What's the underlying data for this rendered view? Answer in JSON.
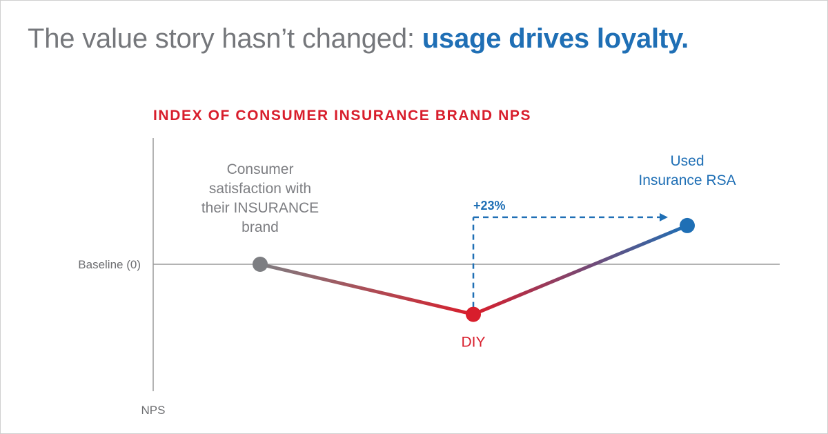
{
  "headline": {
    "lead": "The value story hasn’t changed: ",
    "accent": "usage drives loyalty."
  },
  "colors": {
    "headline_gray": "#75777b",
    "accent_blue": "#1f6fb5",
    "title_red": "#d81e2c",
    "point_gray": "#7d7e82",
    "point_red": "#d81e2c",
    "point_blue": "#1f6fb5",
    "axis": "#9a9a9a"
  },
  "chart_data": {
    "type": "line",
    "title": "INDEX OF CONSUMER INSURANCE BRAND NPS",
    "ylabel": "NPS",
    "baseline_label": "Baseline (0)",
    "ylim": [
      -60,
      60
    ],
    "points": [
      {
        "label_lines": [
          "Consumer",
          "satisfaction with",
          "their INSURANCE",
          "brand"
        ],
        "y": 0,
        "color": "#7d7e82"
      },
      {
        "label_lines": [
          "DIY"
        ],
        "y": -22,
        "color": "#d81e2c"
      },
      {
        "label_lines": [
          "Used",
          "Insurance RSA"
        ],
        "y": 17,
        "color": "#1f6fb5"
      }
    ],
    "annotation": {
      "text": "+23%",
      "from_point": 1,
      "to_point": 2
    }
  }
}
